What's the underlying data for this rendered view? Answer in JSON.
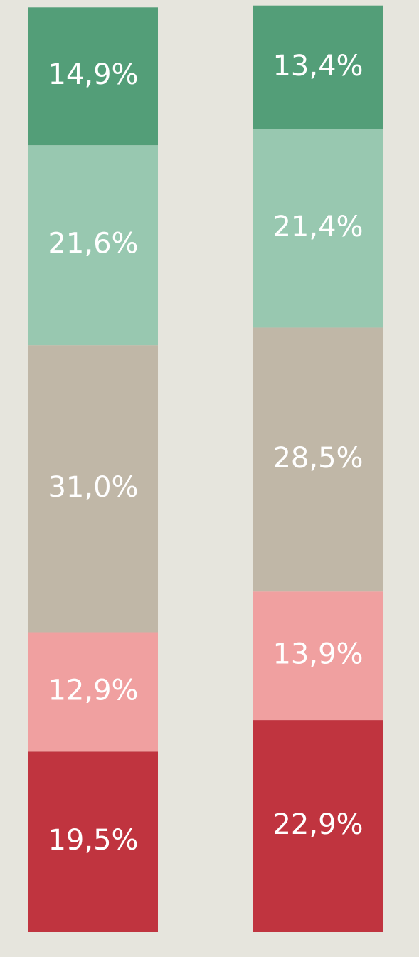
{
  "chart_data": {
    "type": "stacked_bar",
    "categories": [
      null,
      null
    ],
    "series": [
      {
        "color": "#c0343f",
        "values": [
          19.5,
          22.9
        ],
        "value_labels": [
          "19,5%",
          "22,9%"
        ]
      },
      {
        "color": "#f0a0a0",
        "values": [
          12.9,
          13.9
        ],
        "value_labels": [
          "12,9%",
          "13,9%"
        ]
      },
      {
        "color": "#c0b7a7",
        "values": [
          31.0,
          28.5
        ],
        "value_labels": [
          "31,0%",
          "28,5%"
        ]
      },
      {
        "color": "#98c8b0",
        "values": [
          21.6,
          21.4
        ],
        "value_labels": [
          "21,6%",
          "21,4%"
        ]
      },
      {
        "color": "#539e78",
        "values": [
          14.9,
          13.4
        ],
        "value_labels": [
          "14,9%",
          "13,4%"
        ]
      }
    ]
  }
}
